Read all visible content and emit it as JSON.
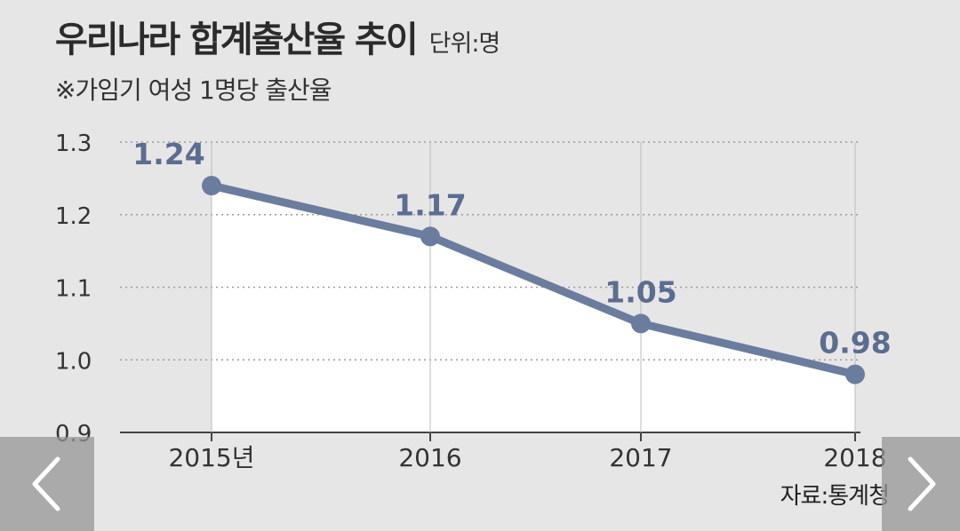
{
  "title": "우리나라 합계출산율 추이",
  "unit": "단위:명",
  "subtitle": "※가임기 여성 1명당 출산율",
  "source": "자료:통계청",
  "colors": {
    "line": "#6b7d9e",
    "label": "#5b6d90",
    "fill": "#ffffff",
    "background": "#e6e6e6",
    "grid": "#9a9a9a"
  },
  "chart_data": {
    "type": "line",
    "title": "우리나라 합계출산율 추이",
    "ylabel": "단위:명",
    "categories": [
      "2015년",
      "2016",
      "2017",
      "2018"
    ],
    "values": [
      1.24,
      1.17,
      1.05,
      0.98
    ],
    "data_labels": [
      "1.24",
      "1.17",
      "1.05",
      "0.98"
    ],
    "yticks": [
      0.9,
      1.0,
      1.1,
      1.2,
      1.3
    ],
    "ytick_labels": [
      "0.9",
      "1.0",
      "1.1",
      "1.2",
      "1.3"
    ],
    "ylim": [
      0.9,
      1.3
    ],
    "grid": true,
    "area_fill": true
  },
  "nav": {
    "prev_icon": "chevron-left-icon",
    "next_icon": "chevron-right-icon"
  }
}
